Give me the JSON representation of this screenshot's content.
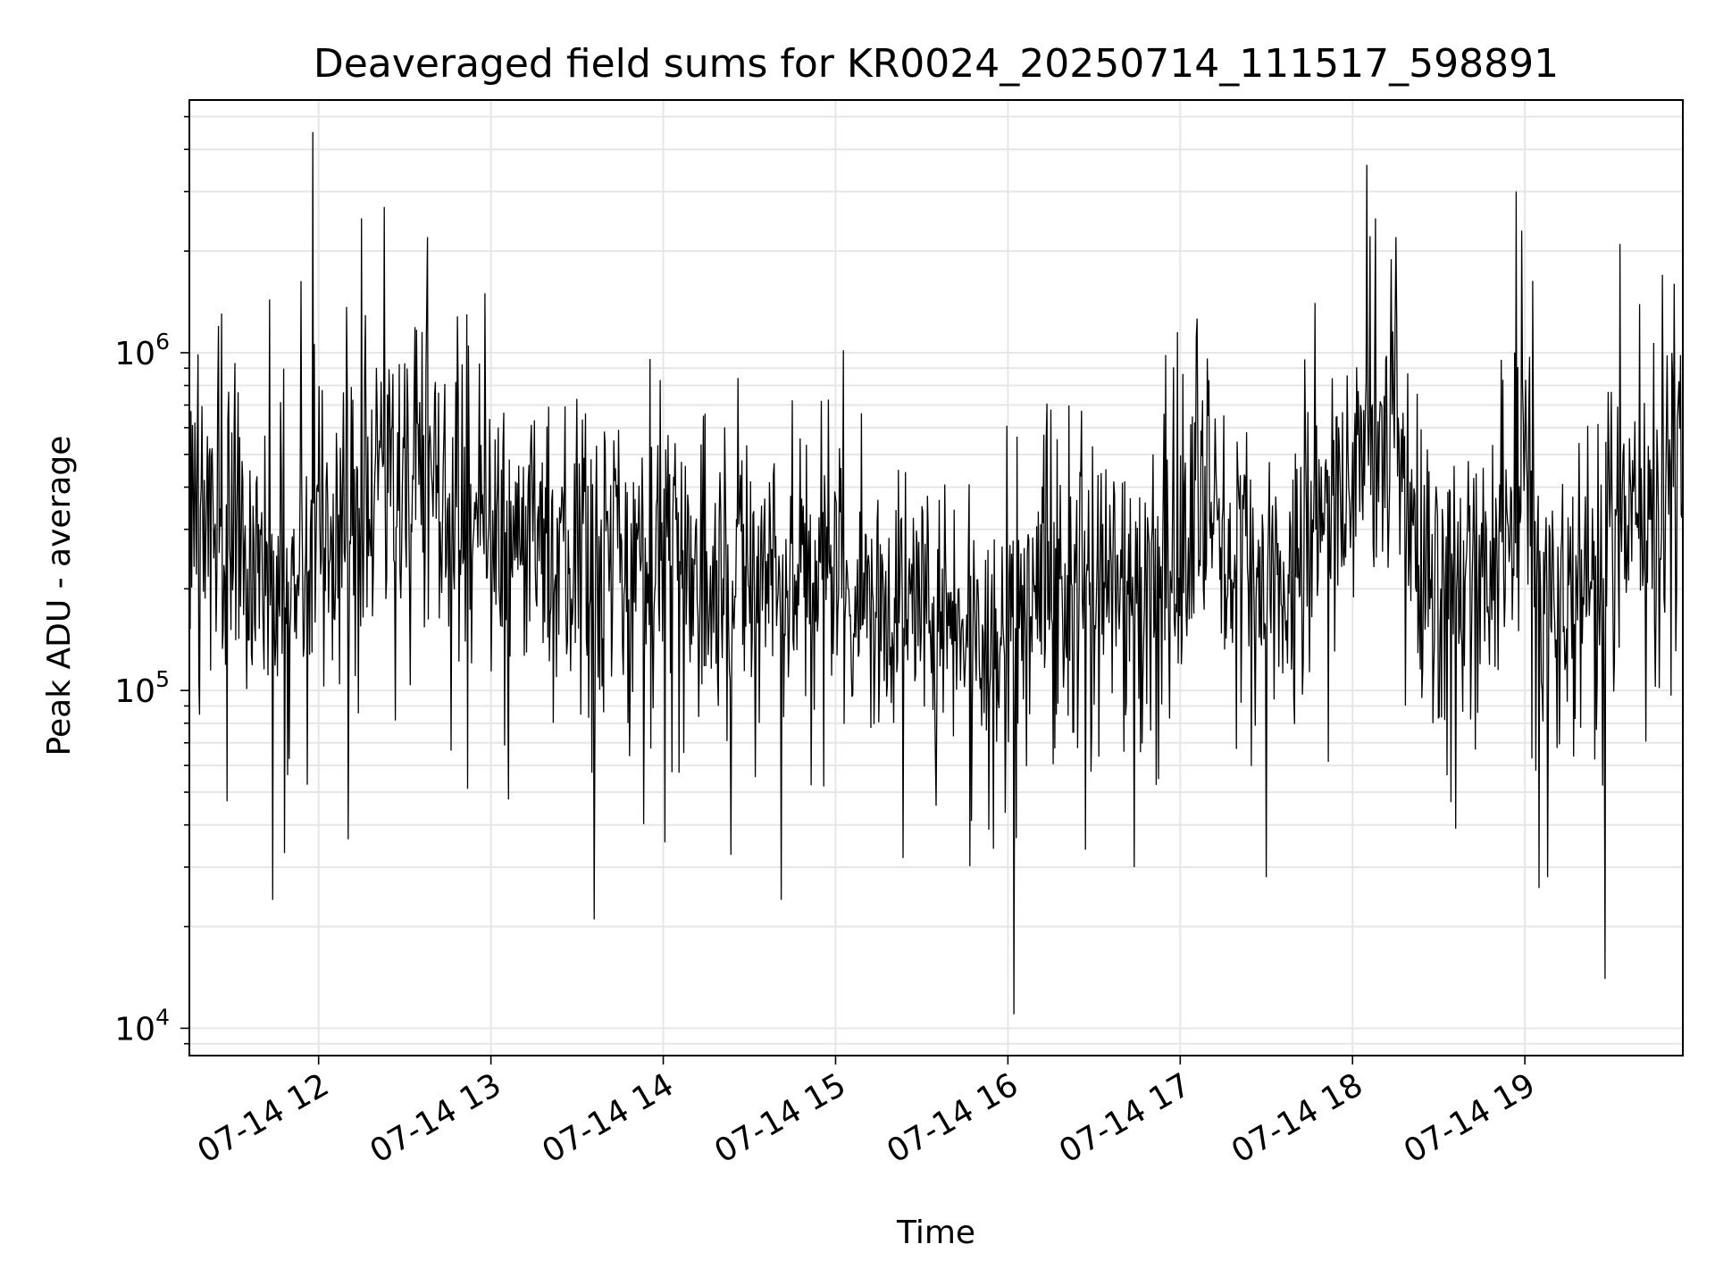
{
  "chart_data": {
    "type": "line",
    "title": "Deaveraged field sums for KR0024_20250714_111517_598891",
    "xlabel": "Time",
    "ylabel": "Peak ADU - average",
    "yscale": "log",
    "grid": true,
    "line_color": "#000000",
    "grid_color": "#e6e6e6",
    "xlim": [
      "07-14 11:15",
      "07-14 19:55"
    ],
    "ylim": [
      8300,
      5600000
    ],
    "x_ticks": [
      "07-14 12",
      "07-14 13",
      "07-14 14",
      "07-14 15",
      "07-14 16",
      "07-14 17",
      "07-14 18",
      "07-14 19"
    ],
    "y_ticks": [
      {
        "base": "10",
        "exp": "4",
        "value": 10000
      },
      {
        "base": "10",
        "exp": "5",
        "value": 100000
      },
      {
        "base": "10",
        "exp": "6",
        "value": 1000000
      }
    ],
    "series": [
      {
        "x_start": "07-14 11:15",
        "x_end": "07-14 19:55",
        "baseline": [
          [
            "07-14 11:15",
            300000
          ],
          [
            "07-14 11:30",
            330000
          ],
          [
            "07-14 11:40",
            210000
          ],
          [
            "07-14 11:50",
            200000
          ],
          [
            "07-14 12:00",
            300000
          ],
          [
            "07-14 12:15",
            320000
          ],
          [
            "07-14 12:25",
            550000
          ],
          [
            "07-14 12:35",
            420000
          ],
          [
            "07-14 12:50",
            320000
          ],
          [
            "07-14 13:00",
            280000
          ],
          [
            "07-14 13:30",
            240000
          ],
          [
            "07-14 14:00",
            230000
          ],
          [
            "07-14 14:30",
            220000
          ],
          [
            "07-14 15:00",
            200000
          ],
          [
            "07-14 15:30",
            190000
          ],
          [
            "07-14 15:50",
            180000
          ],
          [
            "07-14 16:00",
            150000
          ],
          [
            "07-14 16:20",
            210000
          ],
          [
            "07-14 16:50",
            190000
          ],
          [
            "07-14 17:05",
            300000
          ],
          [
            "07-14 17:20",
            250000
          ],
          [
            "07-14 17:35",
            170000
          ],
          [
            "07-14 17:50",
            300000
          ],
          [
            "07-14 18:05",
            550000
          ],
          [
            "07-14 18:15",
            450000
          ],
          [
            "07-14 18:30",
            180000
          ],
          [
            "07-14 18:45",
            220000
          ],
          [
            "07-14 18:55",
            300000
          ],
          [
            "07-14 19:00",
            650000
          ],
          [
            "07-14 19:05",
            200000
          ],
          [
            "07-14 19:15",
            170000
          ],
          [
            "07-14 19:35",
            320000
          ],
          [
            "07-14 19:55",
            550000
          ]
        ],
        "peaks": [
          [
            "07-14 11:58",
            4500000
          ],
          [
            "07-14 12:15",
            2500000
          ],
          [
            "07-14 12:23",
            2700000
          ],
          [
            "07-14 12:38",
            2200000
          ],
          [
            "07-14 12:58",
            1500000
          ],
          [
            "07-14 11:25",
            1200000
          ],
          [
            "07-14 18:05",
            3600000
          ],
          [
            "07-14 18:08",
            2500000
          ],
          [
            "07-14 18:15",
            2200000
          ],
          [
            "07-14 18:57",
            3000000
          ],
          [
            "07-14 18:59",
            2300000
          ],
          [
            "07-14 19:33",
            2100000
          ],
          [
            "07-14 19:48",
            1700000
          ],
          [
            "07-14 19:52",
            1600000
          ],
          [
            "07-14 16:59",
            1150000
          ],
          [
            "07-14 13:59",
            830000
          ],
          [
            "07-14 14:55",
            720000
          ]
        ],
        "dips": [
          [
            "07-14 11:44",
            24000
          ],
          [
            "07-14 11:48",
            33000
          ],
          [
            "07-14 13:36",
            21000
          ],
          [
            "07-14 14:41",
            24000
          ],
          [
            "07-14 16:02",
            11000
          ],
          [
            "07-14 17:30",
            28000
          ],
          [
            "07-14 19:28",
            14000
          ],
          [
            "07-14 19:05",
            26000
          ],
          [
            "07-14 19:08",
            28000
          ],
          [
            "07-14 11:28",
            47000
          ],
          [
            "07-14 15:55",
            34000
          ],
          [
            "07-14 16:44",
            30000
          ]
        ]
      }
    ]
  }
}
